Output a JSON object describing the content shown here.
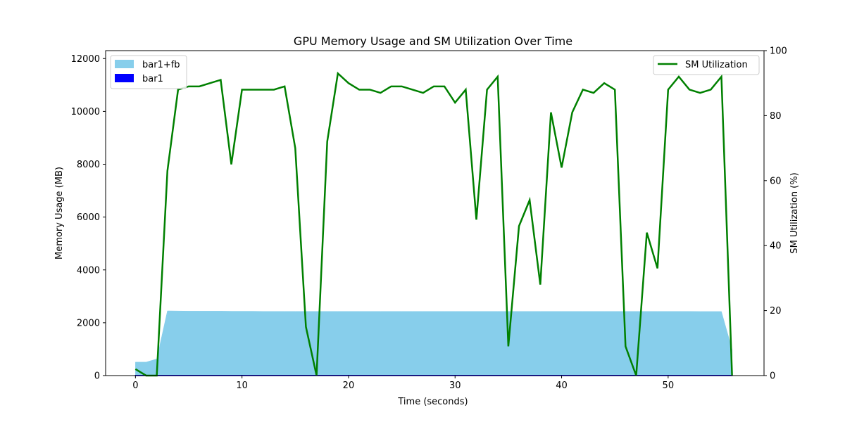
{
  "chart_data": {
    "type": "area+line",
    "title": "GPU Memory Usage and SM Utilization Over Time",
    "xlabel": "Time (seconds)",
    "ylabel_left": "Memory Usage (MB)",
    "ylabel_right": "SM Utilization (%)",
    "xlim": [
      -2.8,
      59
    ],
    "ylim_left": [
      0,
      12300
    ],
    "ylim_right": [
      0,
      100
    ],
    "xticks": [
      0,
      10,
      20,
      30,
      40,
      50
    ],
    "yticks_left": [
      0,
      2000,
      4000,
      6000,
      8000,
      10000,
      12000
    ],
    "yticks_right": [
      0,
      20,
      40,
      60,
      80,
      100
    ],
    "legend_left": {
      "position": "top-left",
      "entries": [
        "bar1+fb",
        "bar1"
      ]
    },
    "legend_right": {
      "position": "top-right",
      "entries": [
        "SM Utilization"
      ]
    },
    "colors": {
      "bar1_fb": "#87ceeb",
      "bar1": "#0000ff",
      "sm": "#008000",
      "left_label": "#0000ff",
      "right_label": "#008000"
    },
    "x": [
      0,
      1,
      2,
      3,
      4,
      5,
      6,
      7,
      8,
      9,
      10,
      11,
      12,
      13,
      14,
      15,
      16,
      17,
      18,
      19,
      20,
      21,
      22,
      23,
      24,
      25,
      26,
      27,
      28,
      29,
      30,
      31,
      32,
      33,
      34,
      35,
      36,
      37,
      38,
      39,
      40,
      41,
      42,
      43,
      44,
      45,
      46,
      47,
      48,
      49,
      50,
      51,
      52,
      53,
      54,
      55,
      56
    ],
    "series": [
      {
        "name": "bar1+fb",
        "kind": "area",
        "values": [
          510,
          510,
          630,
          2450,
          2445,
          2440,
          2440,
          2440,
          2440,
          2435,
          2435,
          2435,
          2430,
          2430,
          2430,
          2430,
          2430,
          2430,
          2430,
          2430,
          2430,
          2430,
          2430,
          2430,
          2430,
          2430,
          2430,
          2430,
          2430,
          2430,
          2430,
          2430,
          2430,
          2430,
          2430,
          2430,
          2430,
          2430,
          2430,
          2430,
          2430,
          2430,
          2430,
          2430,
          2430,
          2430,
          2430,
          2430,
          2430,
          2430,
          2430,
          2430,
          2430,
          2425,
          2425,
          2425,
          1000
        ]
      },
      {
        "name": "bar1",
        "kind": "area",
        "values": [
          8,
          8,
          8,
          8,
          8,
          8,
          8,
          8,
          8,
          8,
          8,
          8,
          8,
          8,
          8,
          8,
          8,
          8,
          8,
          8,
          8,
          8,
          8,
          8,
          8,
          8,
          8,
          8,
          8,
          8,
          8,
          8,
          8,
          8,
          8,
          8,
          8,
          8,
          8,
          8,
          8,
          8,
          8,
          8,
          8,
          8,
          8,
          8,
          8,
          8,
          8,
          8,
          8,
          8,
          8,
          8,
          8
        ]
      },
      {
        "name": "SM Utilization",
        "kind": "line",
        "axis": "right",
        "values": [
          2,
          0,
          0,
          63,
          88,
          89,
          89,
          90,
          91,
          65,
          88,
          88,
          88,
          88,
          89,
          70,
          15,
          0,
          72,
          93,
          90,
          88,
          88,
          87,
          89,
          89,
          88,
          87,
          89,
          89,
          84,
          88,
          48,
          88,
          92,
          9,
          46,
          54,
          28,
          81,
          64,
          81,
          88,
          87,
          90,
          88,
          9,
          0,
          44,
          33,
          88,
          92,
          88,
          87,
          88,
          92,
          0
        ]
      }
    ]
  }
}
